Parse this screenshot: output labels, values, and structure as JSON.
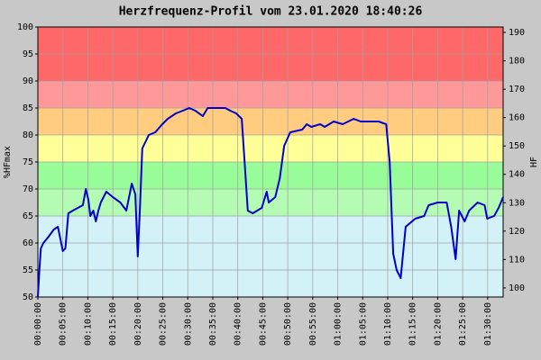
{
  "chart_data": {
    "type": "line",
    "title": "Herzfrequenz-Profil vom 23.01.2020 18:40:26",
    "ylabel": "%HFmax",
    "y2label": "HF",
    "color": "#0000cc",
    "grid": true,
    "xlim": [
      0,
      93.1
    ],
    "ylim": [
      50,
      100
    ],
    "y2lim": [
      96.8,
      191.9
    ],
    "yticks": [
      50,
      55,
      60,
      65,
      70,
      75,
      80,
      85,
      90,
      95,
      100
    ],
    "y2ticks": [
      100,
      110,
      120,
      130,
      140,
      150,
      160,
      170,
      180,
      190
    ],
    "xticks": [
      {
        "value": 0,
        "label": "00:00:00"
      },
      {
        "value": 5,
        "label": "00:05:00"
      },
      {
        "value": 10,
        "label": "00:10:00"
      },
      {
        "value": 15,
        "label": "00:15:00"
      },
      {
        "value": 20,
        "label": "00:20:00"
      },
      {
        "value": 25,
        "label": "00:25:00"
      },
      {
        "value": 30,
        "label": "00:30:00"
      },
      {
        "value": 35,
        "label": "00:35:00"
      },
      {
        "value": 40,
        "label": "00:40:00"
      },
      {
        "value": 45,
        "label": "00:45:00"
      },
      {
        "value": 50,
        "label": "00:50:00"
      },
      {
        "value": 55,
        "label": "00:55:00"
      },
      {
        "value": 60,
        "label": "01:00:00"
      },
      {
        "value": 65,
        "label": "01:05:00"
      },
      {
        "value": 70,
        "label": "01:10:00"
      },
      {
        "value": 75,
        "label": "01:15:00"
      },
      {
        "value": 80,
        "label": "01:20:00"
      },
      {
        "value": 85,
        "label": "01:25:00"
      },
      {
        "value": 90,
        "label": "01:30:00"
      }
    ],
    "zones": [
      {
        "from": 50,
        "to": 65,
        "color": "#d2f2f8"
      },
      {
        "from": 65,
        "to": 70,
        "color": "#b4fcb4"
      },
      {
        "from": 70,
        "to": 75,
        "color": "#98fc98"
      },
      {
        "from": 75,
        "to": 80,
        "color": "#ffff98"
      },
      {
        "from": 80,
        "to": 85,
        "color": "#ffcc80"
      },
      {
        "from": 85,
        "to": 90,
        "color": "#ff9898"
      },
      {
        "from": 90,
        "to": 100,
        "color": "#ff6868"
      }
    ],
    "x": [
      0,
      0.3,
      0.6,
      1.1,
      2,
      3.2,
      4,
      5,
      5.5,
      6.1,
      7,
      8,
      9,
      9.6,
      10.1,
      10.5,
      11.1,
      11.6,
      12.1,
      12.6,
      13.7,
      15,
      16.5,
      17.7,
      18.8,
      19.5,
      20,
      20.4,
      20.9,
      22.2,
      23.5,
      24.9,
      26,
      27.6,
      29,
      30.3,
      31.5,
      33,
      34,
      35.5,
      37.5,
      38.5,
      39.7,
      40.8,
      41.3,
      42,
      43,
      44.8,
      45.8,
      46.2,
      47.5,
      48.4,
      49.3,
      50.5,
      52.9,
      53.8,
      54.7,
      56.5,
      57.4,
      59.2,
      61,
      63.2,
      64.6,
      66.5,
      68.2,
      69.7,
      70.4,
      71.1,
      71.8,
      72.6,
      73.6,
      75.5,
      77.3,
      78.2,
      80,
      81.8,
      82.7,
      83.6,
      84.3,
      85.4,
      86.3,
      88,
      89.4,
      89.9,
      91.3,
      92.2,
      93.1
    ],
    "values": [
      50,
      55,
      59,
      60,
      61,
      62.5,
      63,
      58.5,
      59,
      65.5,
      66,
      66.5,
      67,
      70,
      68,
      65,
      66,
      64,
      66,
      67.5,
      69.5,
      68.5,
      67.5,
      66,
      71,
      69,
      57.5,
      66,
      77.5,
      80,
      80.5,
      82,
      83,
      84,
      84.5,
      85,
      84.5,
      83.5,
      85,
      85,
      85,
      84.5,
      84,
      83,
      76,
      66,
      65.5,
      66.5,
      69.5,
      67.5,
      68.5,
      72,
      78,
      80.5,
      81,
      82,
      81.5,
      82,
      81.5,
      82.5,
      82,
      83,
      82.5,
      82.5,
      82.5,
      82,
      75,
      58,
      55,
      53.5,
      63,
      64.5,
      65,
      67,
      67.5,
      67.5,
      63,
      57,
      66,
      64,
      66,
      67.5,
      67,
      64.5,
      65,
      66.5,
      68.5
    ]
  }
}
